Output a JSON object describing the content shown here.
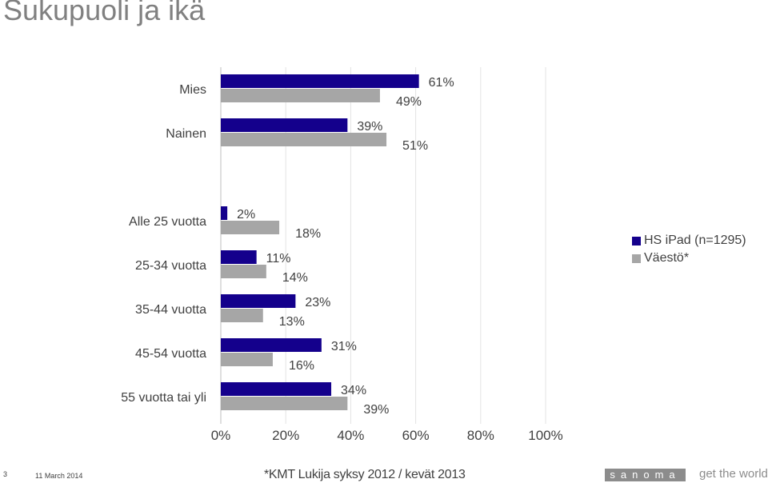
{
  "title": "Sukupuoli ja ikä",
  "chart_data": {
    "type": "bar",
    "orientation": "horizontal",
    "categories": [
      "Mies",
      "Nainen",
      "Alle 25 vuotta",
      "25-34 vuotta",
      "35-44 vuotta",
      "45-54 vuotta",
      "55 vuotta tai yli"
    ],
    "series": [
      {
        "name": "HS iPad (n=1295)",
        "color": "#14008c",
        "values": [
          61,
          39,
          2,
          11,
          23,
          31,
          34
        ],
        "labels": [
          "61%",
          "39%",
          "2%",
          "11%",
          "23%",
          "31%",
          "34%"
        ]
      },
      {
        "name": "Väestö*",
        "color": "#a6a6a6",
        "values": [
          49,
          51,
          18,
          14,
          13,
          16,
          39
        ],
        "labels": [
          "49%",
          "51%",
          "18%",
          "14%",
          "13%",
          "16%",
          "39%"
        ]
      }
    ],
    "x_ticks": [
      "0%",
      "20%",
      "40%",
      "60%",
      "80%",
      "100%"
    ],
    "xlim": [
      0,
      100
    ],
    "grid": true,
    "legend_position": "right"
  },
  "footer": {
    "page_number": "3",
    "date": "11 March 2014",
    "source": "*KMT Lukija syksy 2012 / kevät 2013",
    "brand": "sanoma",
    "tagline": "get the world"
  }
}
